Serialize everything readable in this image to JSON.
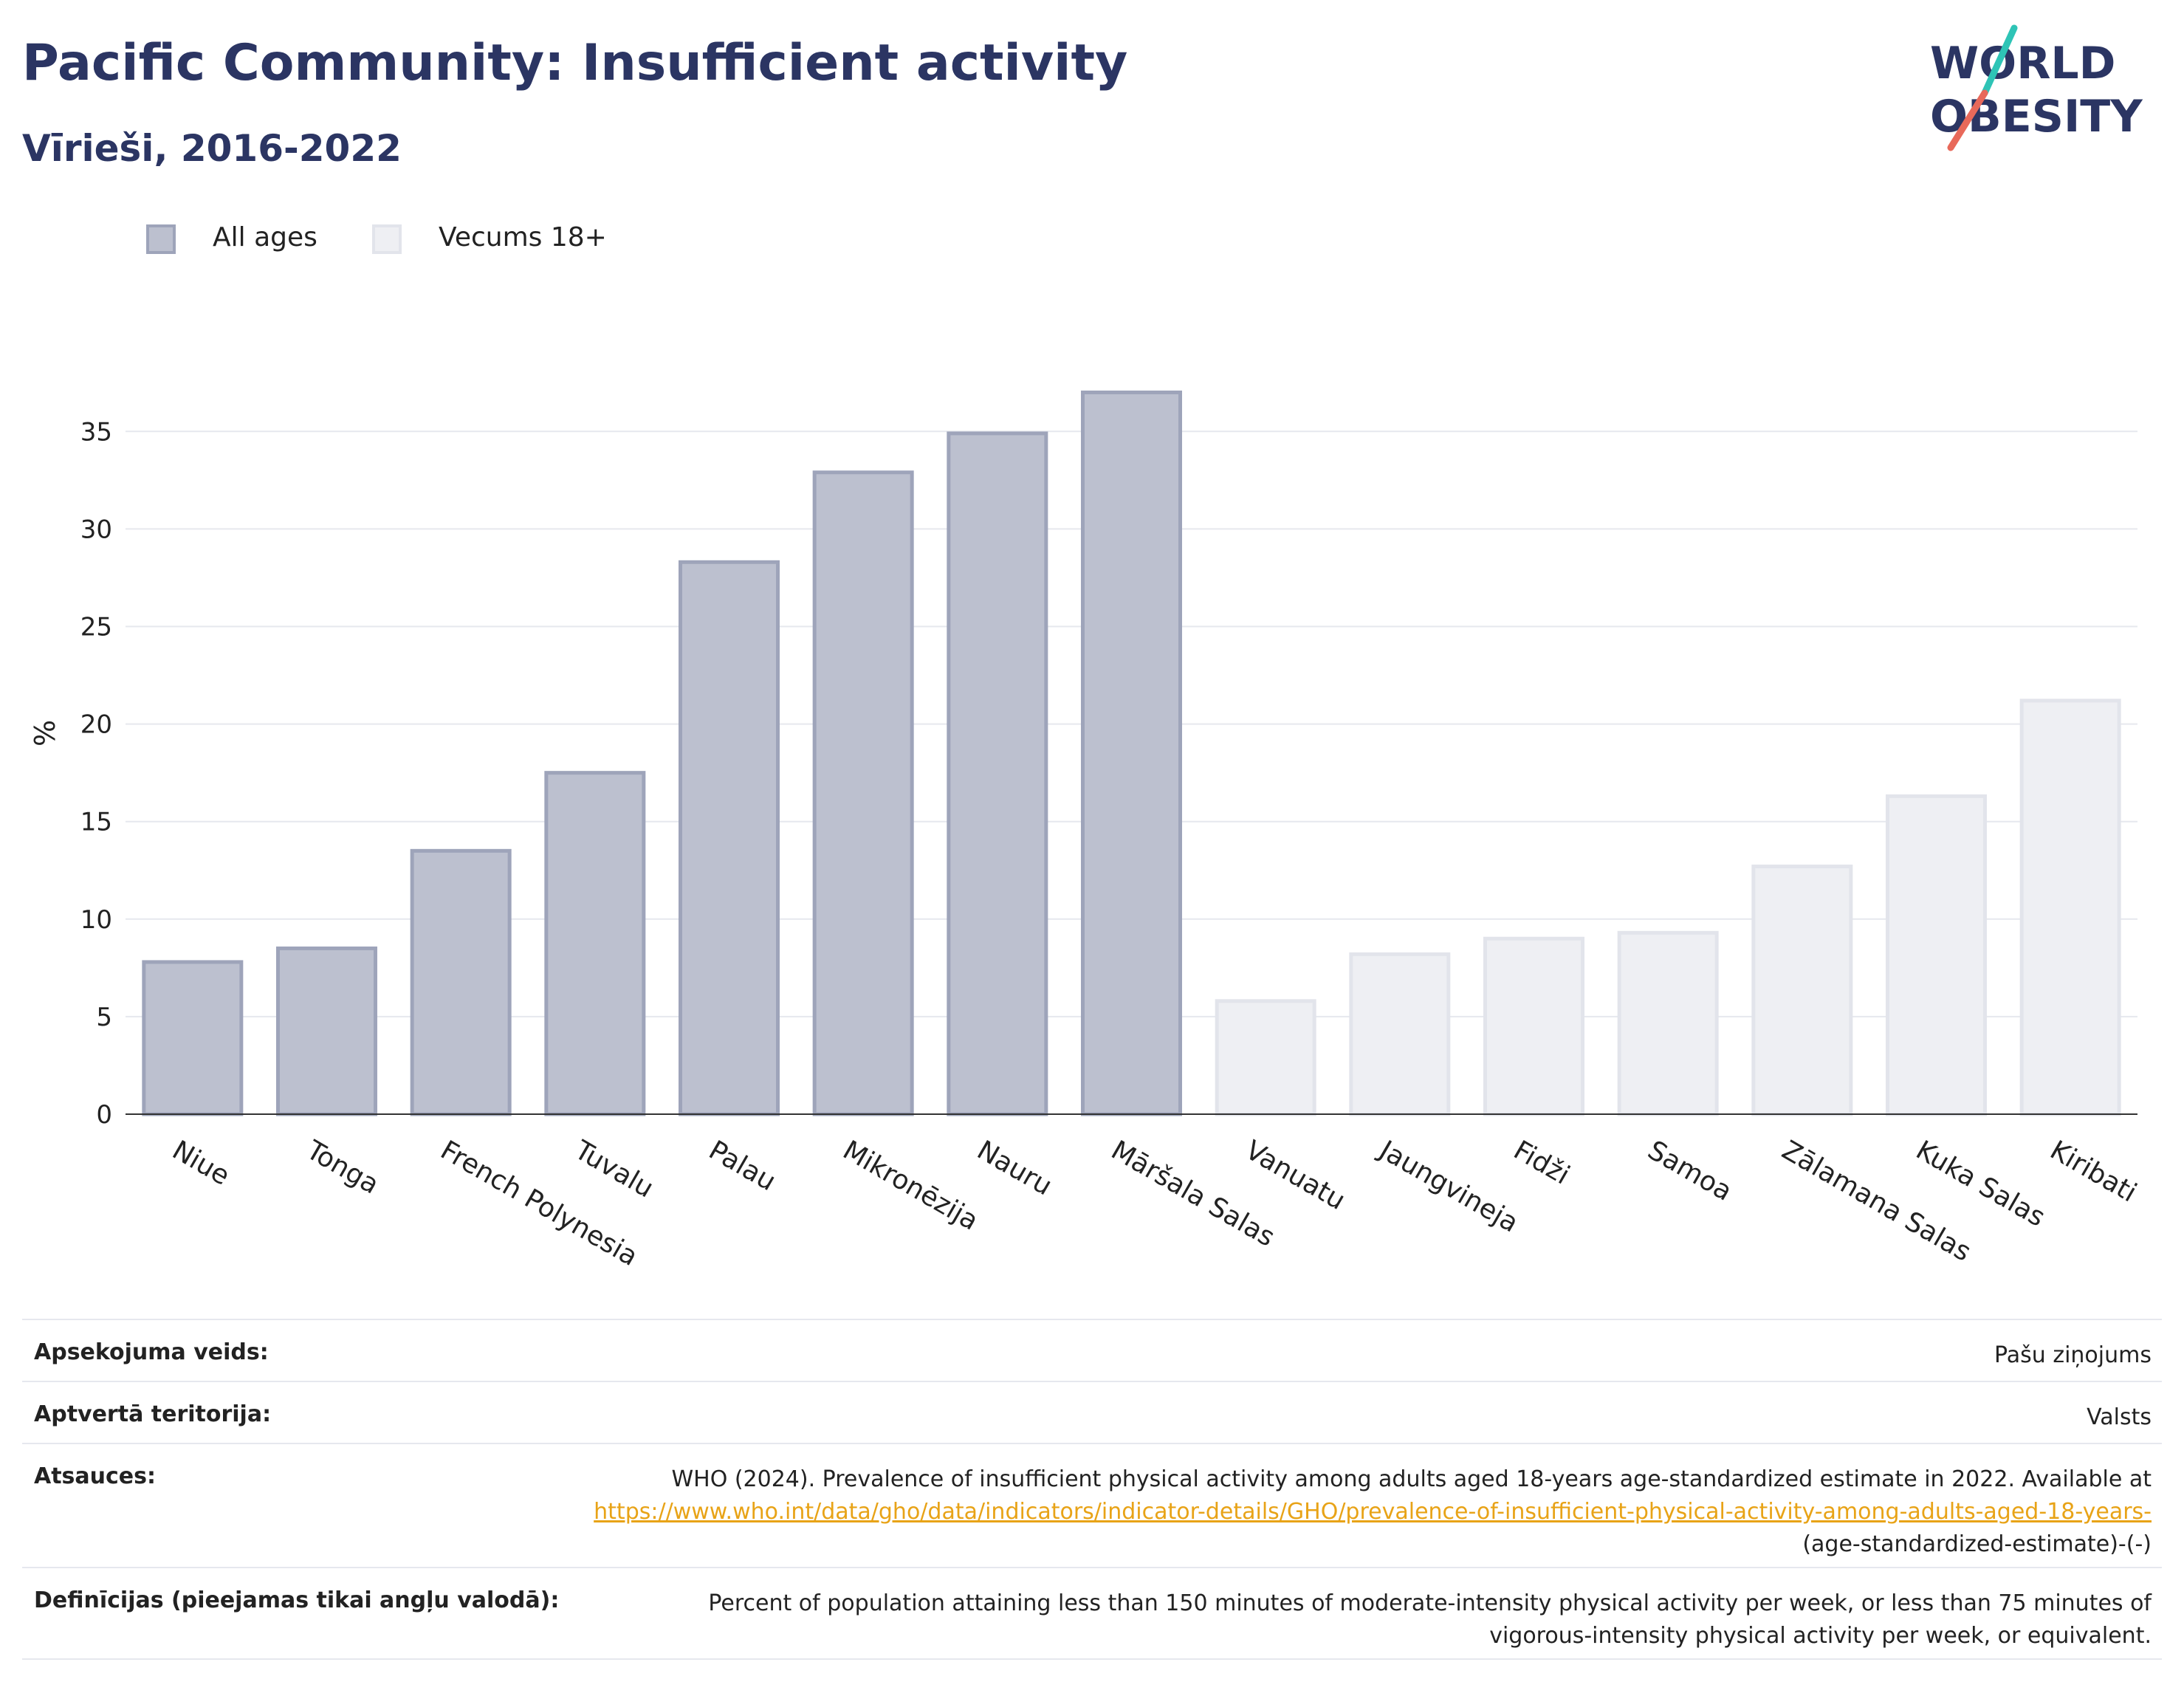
{
  "header": {
    "title": "Pacific Community: Insufficient activity",
    "subtitle": "Vīrieši, 2016-2022"
  },
  "logo": {
    "line1": "WORLD",
    "line2": "OBESITY"
  },
  "colors": {
    "title": "#2b3563",
    "all_ages_fill": "#bcc0cf",
    "all_ages_stroke": "#9ea4ba",
    "age18_fill": "#eeeff3",
    "age18_stroke": "#e2e4eb",
    "grid": "#e6e8ee",
    "link": "#e8a317",
    "logo_text": "#2b3563",
    "logo_slash_top": "#2ec4b6",
    "logo_slash_bottom": "#e8695a"
  },
  "chart_data": {
    "type": "bar",
    "ylabel": "%",
    "xlabel": "",
    "ylim": [
      0,
      38
    ],
    "yticks": [
      0,
      5,
      10,
      15,
      20,
      25,
      30,
      35
    ],
    "grid": true,
    "legend": {
      "placement": "top-left"
    },
    "series": [
      {
        "name": "All ages",
        "fill": "#bcc0cf",
        "stroke": "#9ea4ba"
      },
      {
        "name": "Vecums 18+",
        "fill": "#eeeff3",
        "stroke": "#e2e4eb"
      }
    ],
    "bars": [
      {
        "category": "Niue",
        "value": 7.8,
        "series": 0
      },
      {
        "category": "Tonga",
        "value": 8.5,
        "series": 0
      },
      {
        "category": "French Polynesia",
        "value": 13.5,
        "series": 0
      },
      {
        "category": "Tuvalu",
        "value": 17.5,
        "series": 0
      },
      {
        "category": "Palau",
        "value": 28.3,
        "series": 0
      },
      {
        "category": "Mikronēzija",
        "value": 32.9,
        "series": 0
      },
      {
        "category": "Nauru",
        "value": 34.9,
        "series": 0
      },
      {
        "category": "Māršala Salas",
        "value": 37.0,
        "series": 0
      },
      {
        "category": "Vanuatu",
        "value": 5.8,
        "series": 1
      },
      {
        "category": "Jaungvineja",
        "value": 8.2,
        "series": 1
      },
      {
        "category": "Fidži",
        "value": 9.0,
        "series": 1
      },
      {
        "category": "Samoa",
        "value": 9.3,
        "series": 1
      },
      {
        "category": "Zālamana Salas",
        "value": 12.7,
        "series": 1
      },
      {
        "category": "Kuka Salas",
        "value": 16.3,
        "series": 1
      },
      {
        "category": "Kiribati",
        "value": 21.2,
        "series": 1
      }
    ]
  },
  "meta": {
    "survey": {
      "label": "Apsekojuma veids:",
      "value": "Pašu ziņojums"
    },
    "coverage": {
      "label": "Aptvertā teritorija:",
      "value": "Valsts"
    },
    "references": {
      "label": "Atsauces:",
      "text": "WHO (2024). Prevalence of insufficient physical activity among adults aged 18-years age-standardized estimate in 2022. Available at",
      "link": "https://www.who.int/data/gho/data/indicators/indicator-details/GHO/prevalence-of-insufficient-physical-activity-among-adults-aged-18-years-",
      "suffix": "(age-standardized-estimate)-(-)"
    },
    "definitions": {
      "label": "Definīcijas (pieejamas tikai angļu valodā):",
      "value": "Percent of population attaining less than 150 minutes of moderate-intensity physical activity per week, or less than 75 minutes of vigorous-intensity physical activity per week, or equivalent."
    }
  }
}
